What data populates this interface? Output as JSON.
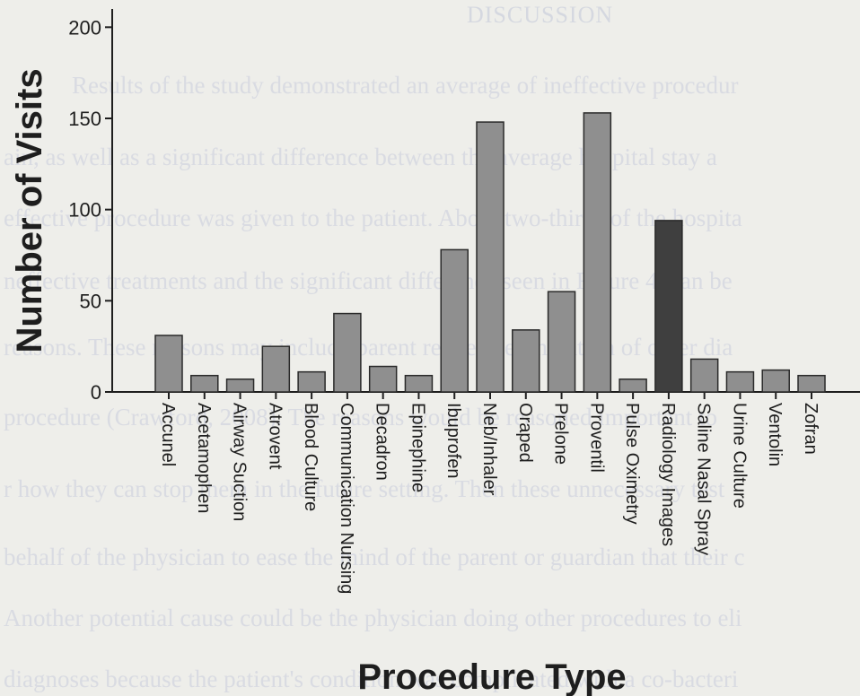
{
  "background_text": {
    "heading": "DISCUSSION",
    "lines": [
      "Results of the study demonstrated an average of ineffective procedur",
      "ain, as well as a significant difference between the average hospital stay a",
      "effective procedure was given to the patient. About two-thirds of the hospita",
      "neffective treatments and the significant difference seen in Figure 4, can be",
      "reasons. These reasons may include parent request, elimination of other dia",
      "procedure (Crawford, 2008). The reasons would be reasoned important to",
      "r how they can stop them in the future setting. Then these unnecessary test",
      "behalf of the physician to ease the mind of the parent or guardian that their c",
      "Another potential cause could be the physician doing other procedures to eli",
      "diagnoses because the patient's condition was complicated with a co-bacteri"
    ]
  },
  "chart_data": {
    "type": "bar",
    "title": "",
    "xlabel": "Procedure Type",
    "ylabel": "Number of Visits",
    "ylim": [
      0,
      210
    ],
    "yticks": [
      0,
      50,
      100,
      150,
      200
    ],
    "grid": false,
    "legend": "none",
    "categories": [
      "Accunel",
      "Acetamophen",
      "Airway Suction",
      "Atrovent",
      "Blood Culture",
      "Communication Nursing",
      "Decadron",
      "Epinephine",
      "Ibuprofen",
      "Neb/Inhaler",
      "Oraped",
      "Prelone",
      "Proventil",
      "Pulse Oximetry",
      "Radiology Images",
      "Saline Nasal Spray",
      "Urine Culture",
      "Ventolin",
      "Zofran"
    ],
    "values": [
      31,
      9,
      7,
      25,
      11,
      43,
      14,
      9,
      78,
      148,
      34,
      55,
      153,
      7,
      94,
      18,
      11,
      12,
      9
    ],
    "colors": {
      "bar": "#8f8f8f",
      "highlight": "#3f3f3f",
      "highlight_categories": [
        "Radiology Images"
      ],
      "bar_stroke": "#2a2a2a",
      "axis": "#1e1e1e"
    }
  }
}
